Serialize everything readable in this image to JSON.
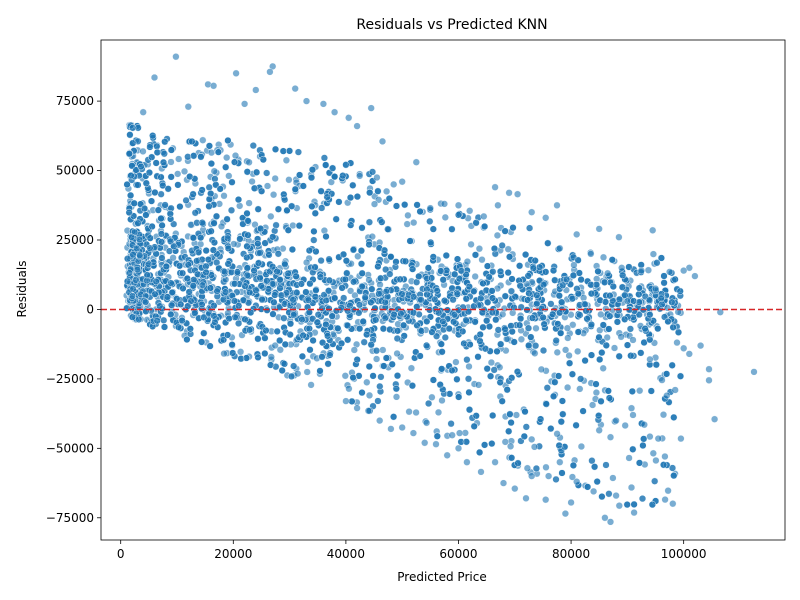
{
  "chart_data": {
    "type": "scatter",
    "title": "Residuals vs Predicted KNN",
    "xlabel": "Predicted Price",
    "ylabel": "Residuals",
    "xlim": [
      -3500,
      118000
    ],
    "ylim": [
      -83000,
      97000
    ],
    "x_ticks": [
      0,
      20000,
      40000,
      60000,
      80000,
      100000
    ],
    "x_tick_labels": [
      "0",
      "20000",
      "40000",
      "60000",
      "80000",
      "100000"
    ],
    "y_ticks": [
      -75000,
      -50000,
      -25000,
      0,
      25000,
      50000,
      75000
    ],
    "y_tick_labels": [
      "−75000",
      "−50000",
      "−25000",
      "0",
      "25000",
      "50000",
      "75000"
    ],
    "grid": false,
    "point_color": "#1f77b4",
    "point_alpha": 0.6,
    "reference_line": {
      "y": 0,
      "color": "#d62728",
      "style": "dashed"
    },
    "series": [
      {
        "values": [
          [
            9800,
            91000
          ],
          [
            6000,
            83500
          ],
          [
            20500,
            85000
          ],
          [
            27000,
            87500
          ],
          [
            26500,
            85500
          ],
          [
            15500,
            81000
          ],
          [
            31000,
            79500
          ],
          [
            16500,
            80500
          ],
          [
            24000,
            79000
          ],
          [
            33000,
            75000
          ],
          [
            4000,
            71000
          ],
          [
            12000,
            73000
          ],
          [
            22000,
            74000
          ],
          [
            36000,
            74000
          ],
          [
            44500,
            72500
          ],
          [
            40500,
            69000
          ],
          [
            46500,
            60500
          ],
          [
            52500,
            53000
          ],
          [
            38000,
            71000
          ],
          [
            48500,
            45000
          ],
          [
            45500,
            47500
          ],
          [
            42000,
            66000
          ],
          [
            50000,
            46000
          ],
          [
            66500,
            44000
          ],
          [
            69000,
            42000
          ],
          [
            70500,
            41500
          ],
          [
            67000,
            37500
          ],
          [
            73000,
            35000
          ],
          [
            77500,
            37500
          ],
          [
            75500,
            33000
          ],
          [
            57500,
            38000
          ],
          [
            60000,
            37500
          ],
          [
            55000,
            36500
          ],
          [
            62000,
            35500
          ],
          [
            64500,
            33500
          ],
          [
            81000,
            27000
          ],
          [
            85000,
            29000
          ],
          [
            88500,
            26000
          ],
          [
            94500,
            28500
          ],
          [
            83500,
            20000
          ],
          [
            92500,
            14000
          ],
          [
            101000,
            15000
          ],
          [
            102000,
            12000
          ],
          [
            100000,
            14000
          ],
          [
            97500,
            13500
          ],
          [
            106500,
            -1000
          ],
          [
            103000,
            -13000
          ],
          [
            101000,
            -16000
          ],
          [
            100000,
            -14000
          ],
          [
            104500,
            -21500
          ],
          [
            104500,
            -25500
          ],
          [
            112500,
            -22500
          ],
          [
            105500,
            -39500
          ],
          [
            99500,
            -46500
          ],
          [
            95500,
            -46500
          ],
          [
            97000,
            -31000
          ],
          [
            98500,
            -29000
          ],
          [
            93000,
            -41500
          ],
          [
            91000,
            -38000
          ],
          [
            88000,
            -40000
          ],
          [
            85000,
            -43500
          ],
          [
            87000,
            -46000
          ],
          [
            84000,
            -65500
          ],
          [
            88000,
            -67000
          ],
          [
            81000,
            -62000
          ],
          [
            80000,
            -69500
          ],
          [
            79000,
            -73500
          ],
          [
            86000,
            -75000
          ],
          [
            87000,
            -76500
          ],
          [
            76000,
            -60000
          ],
          [
            75500,
            -68500
          ],
          [
            73000,
            -60000
          ],
          [
            72000,
            -68000
          ],
          [
            70000,
            -64500
          ],
          [
            68000,
            -62500
          ],
          [
            66500,
            -55000
          ],
          [
            64000,
            -58500
          ],
          [
            61500,
            -55000
          ],
          [
            60000,
            -50000
          ],
          [
            58000,
            -52500
          ],
          [
            56000,
            -48500
          ],
          [
            54000,
            -48000
          ],
          [
            52000,
            -44500
          ],
          [
            50000,
            -42500
          ],
          [
            48000,
            -43000
          ],
          [
            46000,
            -40000
          ],
          [
            44000,
            -36500
          ],
          [
            42000,
            -35500
          ],
          [
            40000,
            -33000
          ],
          [
            73500,
            -49500
          ],
          [
            78000,
            -55000
          ],
          [
            94000,
            -18000
          ],
          [
            91000,
            -11000
          ],
          [
            96000,
            4000
          ],
          [
            95000,
            7500
          ],
          [
            90000,
            3000
          ],
          [
            86500,
            13000
          ],
          [
            89000,
            15000
          ],
          [
            80500,
            16000
          ],
          [
            78000,
            22000
          ]
        ]
      }
    ]
  }
}
